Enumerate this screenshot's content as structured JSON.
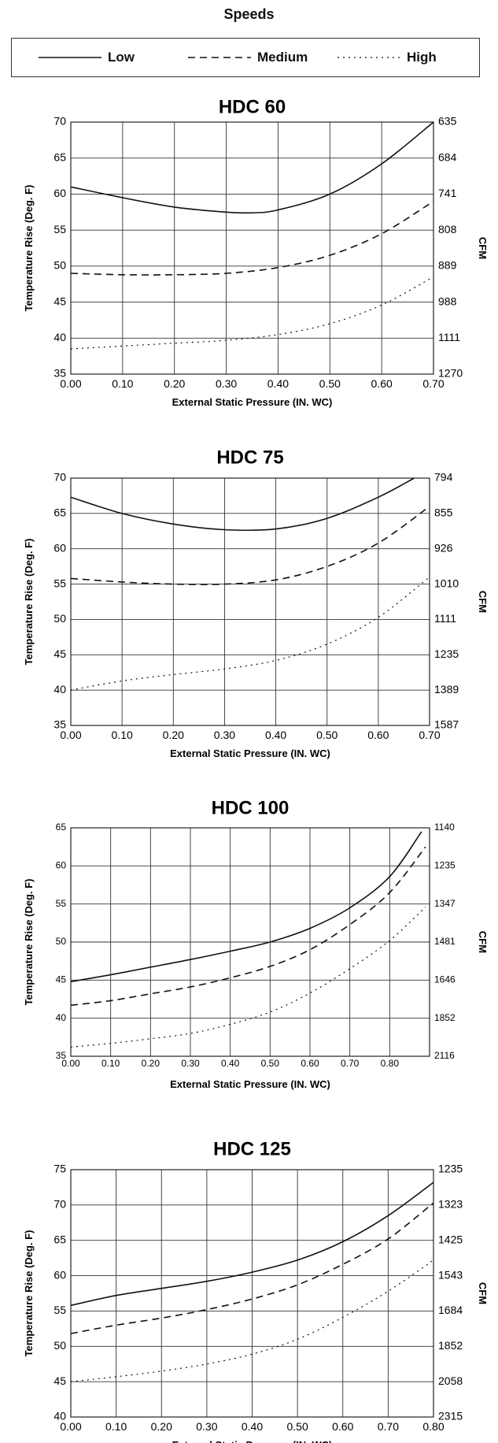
{
  "legend": {
    "title": "Speeds",
    "entries": [
      {
        "name": "Low",
        "dash": "solid"
      },
      {
        "name": "Medium",
        "dash": "dashed"
      },
      {
        "name": "High",
        "dash": "dotted"
      }
    ]
  },
  "chart_data": [
    {
      "type": "line",
      "title": "HDC 60",
      "xlabel": "External Static Pressure (IN. WC)",
      "ylabel": "Temperature Rise (Deg. F)",
      "y2label": "CFM",
      "xlim": [
        0,
        0.7
      ],
      "ylim": [
        35,
        70
      ],
      "xticks": [
        "0.00",
        "0.10",
        "0.20",
        "0.30",
        "0.40",
        "0.50",
        "0.60",
        "0.70"
      ],
      "yticks": [
        "35",
        "40",
        "45",
        "50",
        "55",
        "60",
        "65",
        "70"
      ],
      "y2ticks": [
        "1270",
        "1111",
        "988",
        "889",
        "808",
        "741",
        "684",
        "635"
      ],
      "grid": true,
      "series": [
        {
          "name": "Low",
          "x": [
            0,
            0.1,
            0.2,
            0.3,
            0.35,
            0.4,
            0.5,
            0.6,
            0.7
          ],
          "y": [
            61,
            59.5,
            58.2,
            57.5,
            57.4,
            57.8,
            60,
            64.2,
            70
          ]
        },
        {
          "name": "Medium",
          "x": [
            0,
            0.1,
            0.2,
            0.3,
            0.4,
            0.5,
            0.6,
            0.7
          ],
          "y": [
            49,
            48.8,
            48.8,
            49,
            49.8,
            51.5,
            54.5,
            59
          ]
        },
        {
          "name": "High",
          "x": [
            0,
            0.1,
            0.2,
            0.3,
            0.4,
            0.5,
            0.6,
            0.7
          ],
          "y": [
            38.5,
            38.9,
            39.3,
            39.7,
            40.5,
            42,
            44.6,
            48.5
          ]
        }
      ]
    },
    {
      "type": "line",
      "title": "HDC 75",
      "xlabel": "External Static Pressure (IN. WC)",
      "ylabel": "Temperature Rise (Deg. F)",
      "y2label": "CFM",
      "xlim": [
        0,
        0.7
      ],
      "ylim": [
        35,
        70
      ],
      "xticks": [
        "0.00",
        "0.10",
        "0.20",
        "0.30",
        "0.40",
        "0.50",
        "0.60",
        "0.70"
      ],
      "yticks": [
        "35",
        "40",
        "45",
        "50",
        "55",
        "60",
        "65",
        "70"
      ],
      "y2ticks": [
        "1587",
        "1389",
        "1235",
        "1111",
        "1010",
        "926",
        "855",
        "794"
      ],
      "grid": true,
      "series": [
        {
          "name": "Low",
          "x": [
            0,
            0.1,
            0.2,
            0.3,
            0.4,
            0.5,
            0.6,
            0.67
          ],
          "y": [
            67.3,
            65,
            63.5,
            62.7,
            62.8,
            64.3,
            67.3,
            70
          ]
        },
        {
          "name": "Medium",
          "x": [
            0,
            0.1,
            0.2,
            0.3,
            0.4,
            0.5,
            0.6,
            0.7
          ],
          "y": [
            55.8,
            55.3,
            55,
            55,
            55.6,
            57.5,
            60.8,
            66
          ]
        },
        {
          "name": "High",
          "x": [
            0,
            0.1,
            0.2,
            0.3,
            0.4,
            0.5,
            0.6,
            0.7
          ],
          "y": [
            40,
            41.3,
            42.2,
            43,
            44.2,
            46.5,
            50.3,
            56
          ]
        }
      ]
    },
    {
      "type": "line",
      "title": "HDC 100",
      "xlabel": "External Static Pressure (IN. WC)",
      "ylabel": "Temperature Rise (Deg. F)",
      "y2label": "CFM",
      "xlim": [
        0,
        0.9
      ],
      "ylim": [
        35,
        65
      ],
      "xticks": [
        "0.00",
        "0.10",
        "0.20",
        "0.30",
        "0.40",
        "0.50",
        "0.60",
        "0.70",
        "0.80"
      ],
      "yticks": [
        "35",
        "40",
        "45",
        "50",
        "55",
        "60",
        "65"
      ],
      "y2ticks": [
        "2116",
        "1852",
        "1646",
        "1481",
        "1347",
        "1235",
        "1140"
      ],
      "grid": true,
      "series": [
        {
          "name": "Low",
          "x": [
            0,
            0.1,
            0.2,
            0.3,
            0.4,
            0.5,
            0.6,
            0.7,
            0.8,
            0.88
          ],
          "y": [
            44.8,
            45.7,
            46.7,
            47.7,
            48.8,
            50,
            51.8,
            54.5,
            58.6,
            64.5
          ]
        },
        {
          "name": "Medium",
          "x": [
            0,
            0.1,
            0.2,
            0.3,
            0.4,
            0.5,
            0.6,
            0.7,
            0.8,
            0.89
          ],
          "y": [
            41.7,
            42.3,
            43.2,
            44.1,
            45.3,
            46.8,
            49,
            52.3,
            56.5,
            62.5
          ]
        },
        {
          "name": "High",
          "x": [
            0,
            0.1,
            0.2,
            0.3,
            0.4,
            0.5,
            0.6,
            0.7,
            0.8,
            0.89
          ],
          "y": [
            36.2,
            36.7,
            37.3,
            38,
            39.2,
            40.8,
            43.3,
            46.5,
            50.2,
            54.6
          ]
        }
      ]
    },
    {
      "type": "line",
      "title": "HDC 125",
      "xlabel": "External Static Pressure (IN. WC)",
      "ylabel": "Temperature Rise (Deg. F)",
      "y2label": "CFM",
      "xlim": [
        0,
        0.8
      ],
      "ylim": [
        40,
        75
      ],
      "xticks": [
        "0.00",
        "0.10",
        "0.20",
        "0.30",
        "0.40",
        "0.50",
        "0.60",
        "0.70",
        "0.80"
      ],
      "yticks": [
        "40",
        "45",
        "50",
        "55",
        "60",
        "65",
        "70",
        "75"
      ],
      "y2ticks": [
        "2315",
        "2058",
        "1852",
        "1684",
        "1543",
        "1425",
        "1323",
        "1235"
      ],
      "grid": true,
      "series": [
        {
          "name": "Low",
          "x": [
            0,
            0.1,
            0.2,
            0.3,
            0.4,
            0.5,
            0.6,
            0.7,
            0.8
          ],
          "y": [
            55.8,
            57.2,
            58.2,
            59.2,
            60.5,
            62.2,
            64.8,
            68.5,
            73.2
          ]
        },
        {
          "name": "Medium",
          "x": [
            0,
            0.1,
            0.2,
            0.3,
            0.4,
            0.5,
            0.6,
            0.7,
            0.8
          ],
          "y": [
            51.8,
            53,
            54,
            55.2,
            56.7,
            58.7,
            61.6,
            65.2,
            70.3
          ]
        },
        {
          "name": "High",
          "x": [
            0,
            0.1,
            0.2,
            0.3,
            0.4,
            0.5,
            0.6,
            0.7,
            0.8
          ],
          "y": [
            45,
            45.7,
            46.5,
            47.5,
            48.9,
            51,
            54.1,
            57.8,
            62.2
          ]
        }
      ]
    }
  ]
}
